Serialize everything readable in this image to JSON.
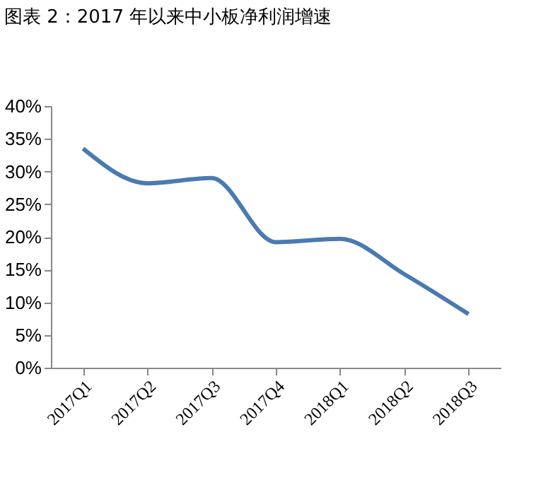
{
  "chart_data": {
    "type": "line",
    "title": "图表 2：2017 年以来中小板净利润增速",
    "categories": [
      "2017Q1",
      "2017Q2",
      "2017Q3",
      "2017Q4",
      "2018Q1",
      "2018Q2",
      "2018Q3"
    ],
    "series": [
      {
        "color": "#4a7ab0",
        "values": [
          33.5,
          28.2,
          29.0,
          19.2,
          19.7,
          14.3,
          8.2
        ]
      }
    ],
    "ylim": [
      0,
      40
    ],
    "yticks": [
      {
        "value": 0,
        "label": "0%"
      },
      {
        "value": 5,
        "label": "5%"
      },
      {
        "value": 10,
        "label": "10%"
      },
      {
        "value": 15,
        "label": "15%"
      },
      {
        "value": 20,
        "label": "20%"
      },
      {
        "value": 25,
        "label": "25%"
      },
      {
        "value": 30,
        "label": "30%"
      },
      {
        "value": 35,
        "label": "35%"
      },
      {
        "value": 40,
        "label": "40%"
      }
    ],
    "grid": false,
    "legend": false,
    "marker": "none",
    "line_style": "solid"
  }
}
